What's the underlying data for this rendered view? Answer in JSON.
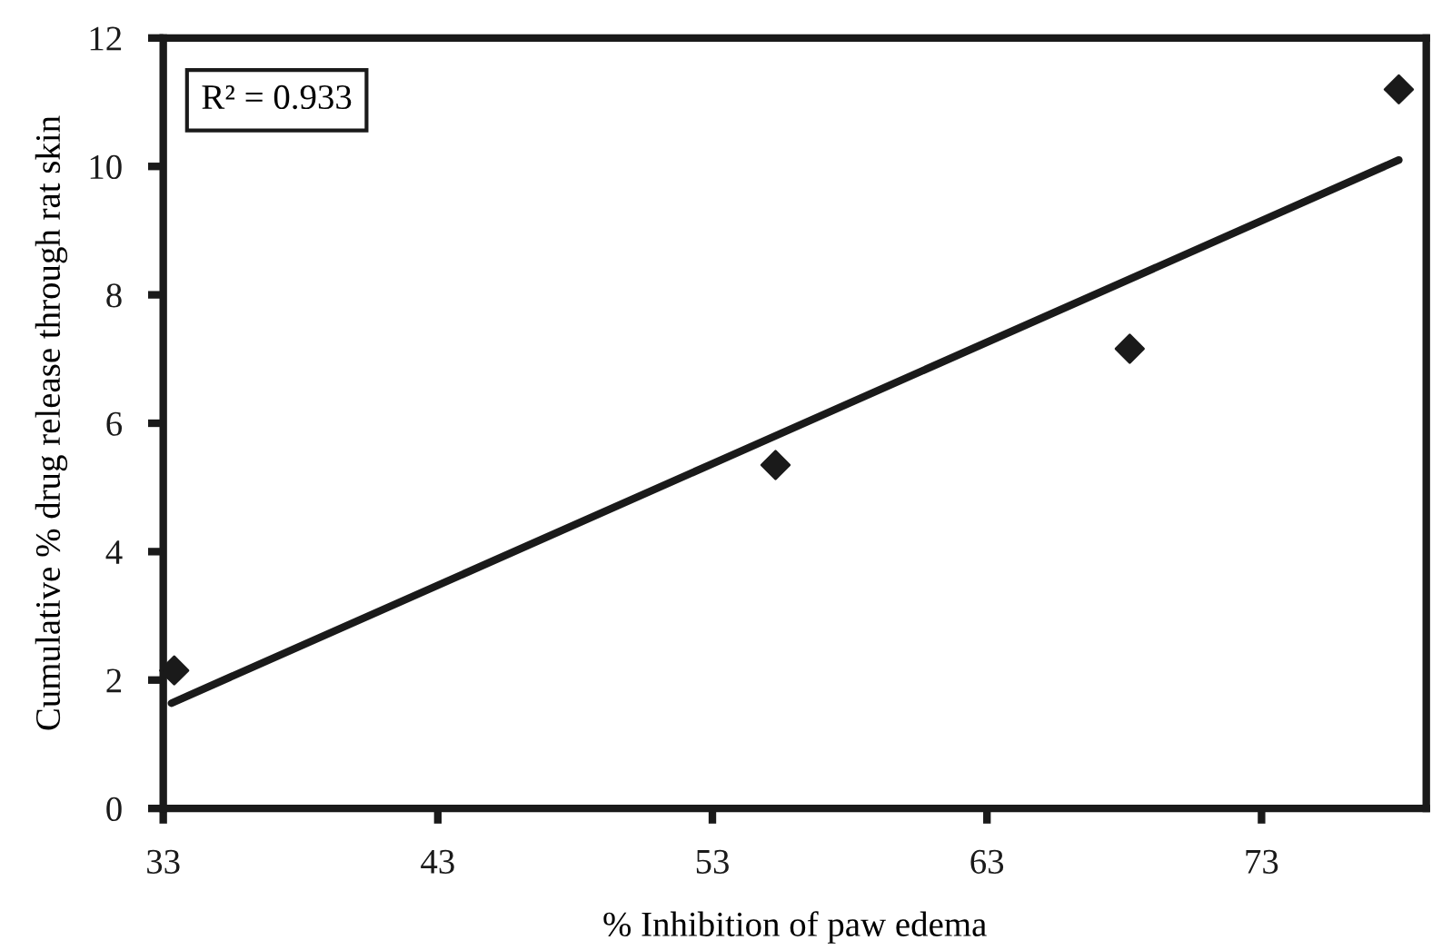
{
  "chart_data": {
    "type": "scatter",
    "xlabel": "% Inhibition of paw edema",
    "ylabel": "Cumulative % drug release through rat skin",
    "series": [
      {
        "marker": "diamond",
        "color": "#1a1a1a",
        "x": [
          33.4,
          55.3,
          68.2,
          78.0
        ],
        "values": [
          2.15,
          5.35,
          7.16,
          11.2
        ]
      },
      {
        "type": "line",
        "marker": "none",
        "line_style": "solid",
        "color": "#1a1a1a",
        "x": [
          33.3,
          78.0
        ],
        "values": [
          1.64,
          10.1
        ]
      }
    ],
    "annotations": [
      "R² = 0.933"
    ],
    "xlim": [
      33,
      79
    ],
    "xticks": [
      33,
      43,
      53,
      63,
      73
    ],
    "ylim": [
      0,
      12
    ],
    "yticks": [
      0,
      2,
      4,
      6,
      8,
      10,
      12
    ],
    "grid": false,
    "legend": false
  }
}
